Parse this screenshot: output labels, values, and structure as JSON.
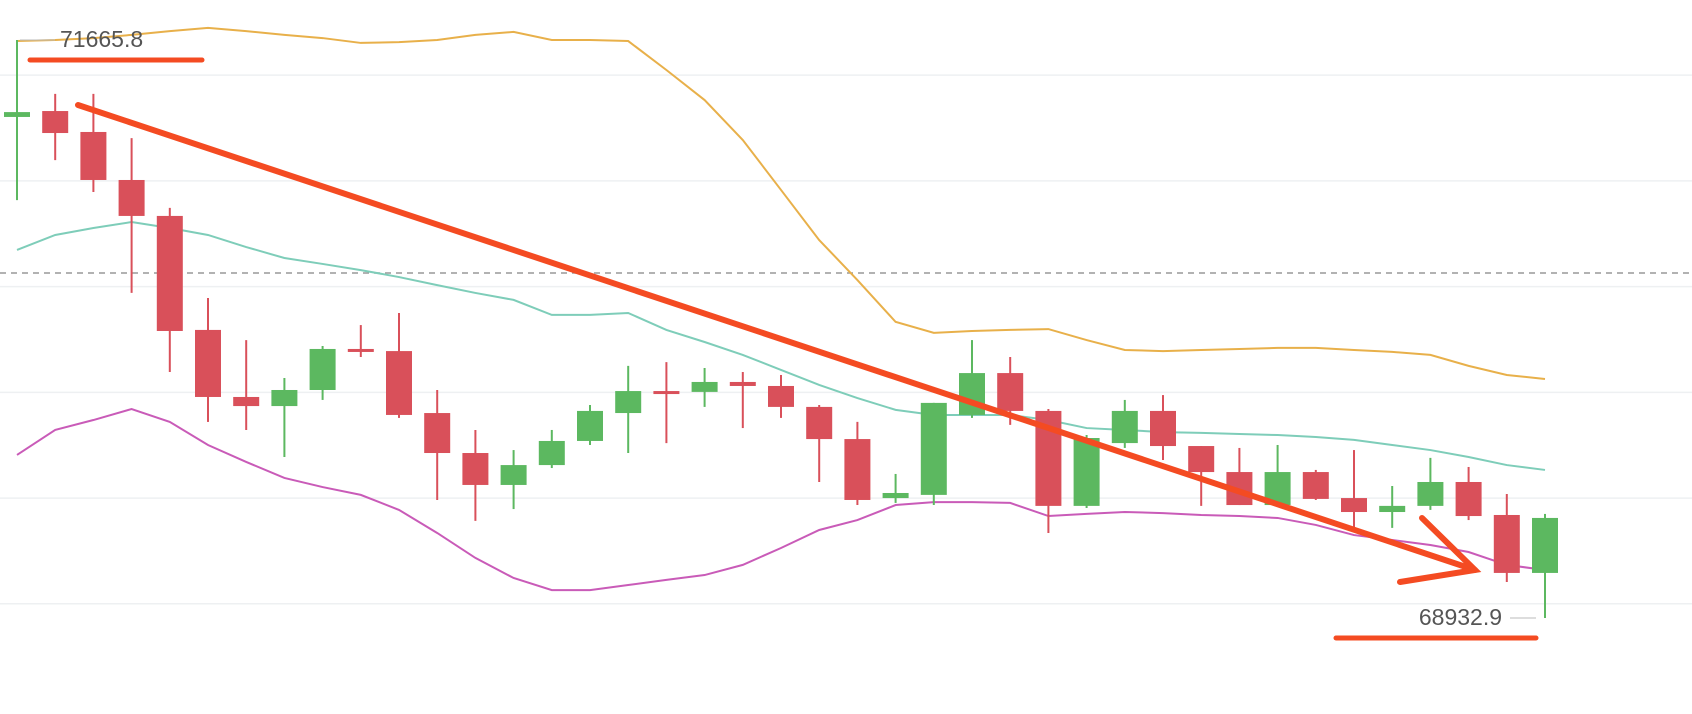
{
  "chart_data": {
    "type": "candlestick",
    "ylim": [
      68479,
      71855
    ],
    "yticks": [
      69000,
      69500,
      70000,
      70500,
      71000,
      71500
    ],
    "grid": true,
    "reference_line": 70564,
    "up_color": "#5cb860",
    "down_color": "#d9505a",
    "open": [
      71302,
      71330,
      71231,
      71004,
      70834,
      70295,
      69978,
      69935,
      70011,
      70205,
      70195,
      69902,
      69713,
      69562,
      69656,
      69770,
      69902,
      70006,
      70002,
      70049,
      70030,
      69931,
      69779,
      69500,
      69515,
      69893,
      70091,
      69912,
      69463,
      69760,
      69912,
      69746,
      69623,
      69467,
      69623,
      69500,
      69434,
      69463,
      69576,
      69420,
      69146
    ],
    "high": [
      71665.8,
      71411,
      71411,
      71202,
      70872,
      70446,
      70247,
      70068,
      70219,
      70318,
      70375,
      70011,
      69822,
      69727,
      69822,
      69940,
      70125,
      70143,
      70115,
      70096,
      70082,
      69940,
      69860,
      69614,
      69950,
      70247,
      70167,
      69921,
      69798,
      69964,
      69987,
      69746,
      69737,
      69751,
      69633,
      69727,
      69557,
      69690,
      69647,
      69519,
      69425
    ],
    "low": [
      70909,
      71098,
      70947,
      70470,
      70096,
      69860,
      69822,
      69694,
      69964,
      70167,
      69879,
      69491,
      69392,
      69448,
      69642,
      69751,
      69713,
      69760,
      69931,
      69831,
      69879,
      69576,
      69467,
      69477,
      69467,
      69879,
      69846,
      69335,
      69453,
      69737,
      69680,
      69463,
      69467,
      69467,
      69491,
      69363,
      69359,
      69444,
      69396,
      69103,
      68932.9
    ],
    "close": [
      71325,
      71226,
      71004,
      70834,
      70290,
      69978,
      69935,
      70011,
      70205,
      70191,
      69893,
      69713,
      69562,
      69656,
      69770,
      69912,
      70006,
      69997,
      70049,
      70030,
      69931,
      69779,
      69491,
      69524,
      69950,
      70091,
      69912,
      69463,
      69784,
      69912,
      69746,
      69623,
      69467,
      69623,
      69496,
      69434,
      69463,
      69576,
      69415,
      69146,
      69406
    ],
    "series": [
      {
        "color": "#e8b04a",
        "values": [
          71661,
          71666,
          71675,
          71690,
          71708,
          71723,
          71708,
          71690,
          71675,
          71652,
          71656,
          71666,
          71690,
          71704,
          71666,
          71666,
          71661,
          71524,
          71382,
          71193,
          70957,
          70720,
          70531,
          70333,
          70281,
          70290,
          70295,
          70299,
          70247,
          70200,
          70195,
          70200,
          70205,
          70210,
          70210,
          70200,
          70191,
          70177,
          70125,
          70082,
          70063
        ]
      },
      {
        "color": "#7ecdb9",
        "values": [
          70673,
          70744,
          70777,
          70805,
          70777,
          70744,
          70687,
          70635,
          70607,
          70578,
          70545,
          70507,
          70470,
          70437,
          70366,
          70366,
          70375,
          70295,
          70238,
          70177,
          70106,
          70035,
          69973,
          69917,
          69893,
          69893,
          69893,
          69869,
          69831,
          69822,
          69812,
          69808,
          69803,
          69798,
          69789,
          69775,
          69751,
          69727,
          69694,
          69656,
          69633
        ]
      },
      {
        "color": "#c95bb8",
        "values": [
          69704,
          69822,
          69869,
          69921,
          69860,
          69751,
          69671,
          69595,
          69552,
          69515,
          69444,
          69335,
          69217,
          69122,
          69065,
          69065,
          69089,
          69113,
          69136,
          69184,
          69264,
          69349,
          69396,
          69467,
          69481,
          69481,
          69477,
          69415,
          69425,
          69434,
          69429,
          69420,
          69415,
          69406,
          69373,
          69325,
          69302,
          69278,
          69245,
          69184,
          69160
        ]
      }
    ],
    "annotations": [
      {
        "value": 71665.8,
        "label": "71665.8"
      },
      {
        "value": 68932.9,
        "label": "68932.9"
      }
    ]
  }
}
